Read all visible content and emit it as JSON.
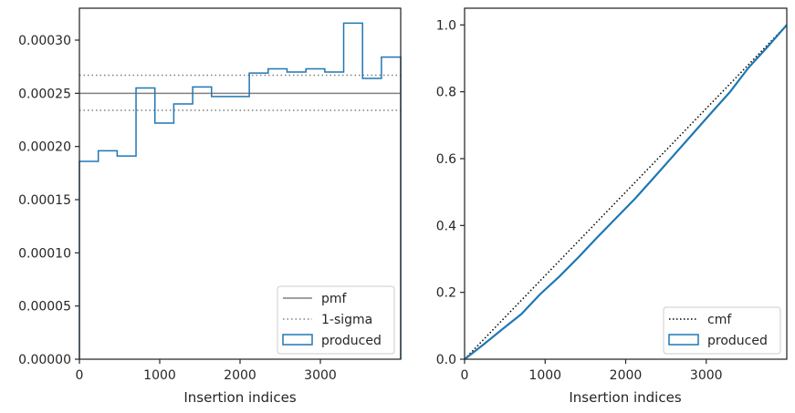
{
  "chart_data": [
    {
      "type": "histogram-step",
      "xlabel": "Insertion indices",
      "ylabel": "",
      "xlim": [
        0,
        4000
      ],
      "ylim": [
        0,
        0.00033
      ],
      "xticks": [
        0,
        1000,
        2000,
        3000
      ],
      "xtick_labels": [
        "0",
        "1000",
        "2000",
        "3000"
      ],
      "yticks": [
        0,
        5e-05,
        0.0001,
        0.00015,
        0.0002,
        0.00025,
        0.0003
      ],
      "ytick_labels": [
        "0.00000",
        "0.00005",
        "0.00010",
        "0.00015",
        "0.00020",
        "0.00025",
        "0.00030"
      ],
      "pmf": 0.00025,
      "sigma_upper": 0.000267,
      "sigma_lower": 0.000234,
      "bin_edges": [
        0,
        235,
        470,
        705,
        940,
        1175,
        1410,
        1645,
        1880,
        2115,
        2350,
        2585,
        2820,
        3055,
        3290,
        3525,
        3760,
        4000
      ],
      "produced": [
        0.000186,
        0.000196,
        0.000191,
        0.000255,
        0.000222,
        0.00024,
        0.000256,
        0.000247,
        0.000247,
        0.000269,
        0.000273,
        0.00027,
        0.000273,
        0.00027,
        0.000316,
        0.000264,
        0.000284
      ],
      "legend": {
        "position": "lower right",
        "entries": [
          {
            "label": "pmf",
            "style": "solid-line",
            "color": "#808080"
          },
          {
            "label": "1-sigma",
            "style": "dotted-line",
            "color": "#808080"
          },
          {
            "label": "produced",
            "style": "box",
            "color": "#1f77b4"
          }
        ]
      }
    },
    {
      "type": "line",
      "xlabel": "Insertion indices",
      "ylabel": "",
      "xlim": [
        0,
        4000
      ],
      "ylim": [
        0,
        1.05
      ],
      "xticks": [
        0,
        1000,
        2000,
        3000
      ],
      "xtick_labels": [
        "0",
        "1000",
        "2000",
        "3000"
      ],
      "yticks": [
        0,
        0.2,
        0.4,
        0.6,
        0.8,
        1.0
      ],
      "ytick_labels": [
        "0.0",
        "0.2",
        "0.4",
        "0.6",
        "0.8",
        "1.0"
      ],
      "cmf": {
        "x": [
          0,
          4000
        ],
        "y": [
          0,
          1.0
        ]
      },
      "produced": {
        "x": [
          0,
          235,
          470,
          705,
          940,
          1175,
          1410,
          1645,
          1880,
          2115,
          2350,
          2585,
          2820,
          3055,
          3290,
          3525,
          3760,
          4000
        ],
        "y": [
          0,
          0.044,
          0.09,
          0.135,
          0.195,
          0.247,
          0.304,
          0.364,
          0.422,
          0.48,
          0.543,
          0.607,
          0.671,
          0.735,
          0.798,
          0.872,
          0.934,
          1.0
        ]
      },
      "legend": {
        "position": "lower right",
        "entries": [
          {
            "label": "cmf",
            "style": "dotted-line",
            "color": "#000000"
          },
          {
            "label": "produced",
            "style": "box",
            "color": "#1f77b4"
          }
        ]
      }
    }
  ]
}
